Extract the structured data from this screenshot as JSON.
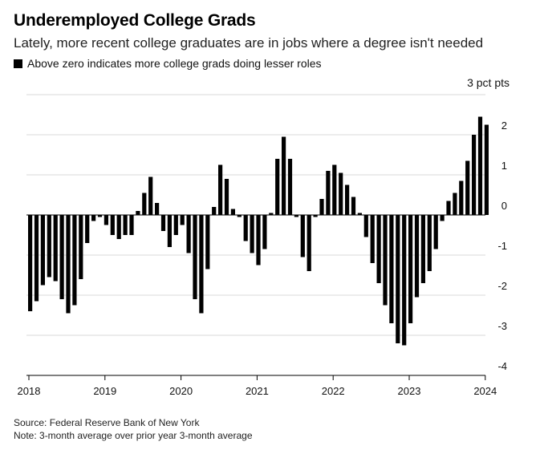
{
  "header": {
    "title": "Underemployed College Grads",
    "subtitle": "Lately, more recent college graduates are in jobs where a degree isn't needed",
    "legend_label": "Above zero indicates more college grads doing lesser roles"
  },
  "footer": {
    "source": "Source: Federal Reserve Bank of New York",
    "note": "Note: 3-month average over prior year 3-month average"
  },
  "colors": {
    "bar": "#000000",
    "grid": "#d9d9d9",
    "axis": "#000000"
  },
  "chart_data": {
    "type": "bar",
    "title": "Underemployed College Grads",
    "subtitle": "Lately, more recent college graduates are in jobs where a degree isn't needed",
    "unit_label": "3 pct pts",
    "ylim": [
      -4,
      3
    ],
    "y_ticks": [
      3,
      2,
      1,
      0,
      -1,
      -2,
      -3,
      -4
    ],
    "y_tick_labels": [
      "3 pct pts",
      "2",
      "1",
      "0",
      "-1",
      "-2",
      "-3",
      "-4"
    ],
    "x_tick_labels": [
      "2018",
      "2019",
      "2020",
      "2021",
      "2022",
      "2023",
      "2024"
    ],
    "x_tick_months": [
      0,
      12,
      24,
      36,
      48,
      60,
      72
    ],
    "months_span": 80,
    "grid": true,
    "series": [
      {
        "name": "Above zero indicates more college grads doing lesser roles",
        "start": "2018-01",
        "values": [
          -2.4,
          -2.15,
          -1.75,
          -1.55,
          -1.65,
          -2.1,
          -2.45,
          -2.25,
          -1.6,
          -0.7,
          -0.15,
          -0.05,
          -0.25,
          -0.5,
          -0.6,
          -0.5,
          -0.5,
          0.1,
          0.55,
          0.95,
          0.3,
          -0.4,
          -0.8,
          -0.5,
          -0.25,
          -0.95,
          -2.1,
          -2.45,
          -1.35,
          0.2,
          1.25,
          0.9,
          0.15,
          -0.05,
          -0.65,
          -0.95,
          -1.25,
          -0.85,
          0.05,
          1.4,
          1.95,
          1.4,
          -0.05,
          -1.05,
          -1.4,
          -0.05,
          0.4,
          1.1,
          1.25,
          1.05,
          0.75,
          0.45,
          0.05,
          -0.55,
          -1.2,
          -1.7,
          -2.25,
          -2.7,
          -3.2,
          -3.25,
          -2.7,
          -2.05,
          -1.7,
          -1.4,
          -0.85,
          -0.15,
          0.35,
          0.55,
          0.85,
          1.35,
          2.0,
          2.45,
          2.25
        ]
      }
    ]
  }
}
